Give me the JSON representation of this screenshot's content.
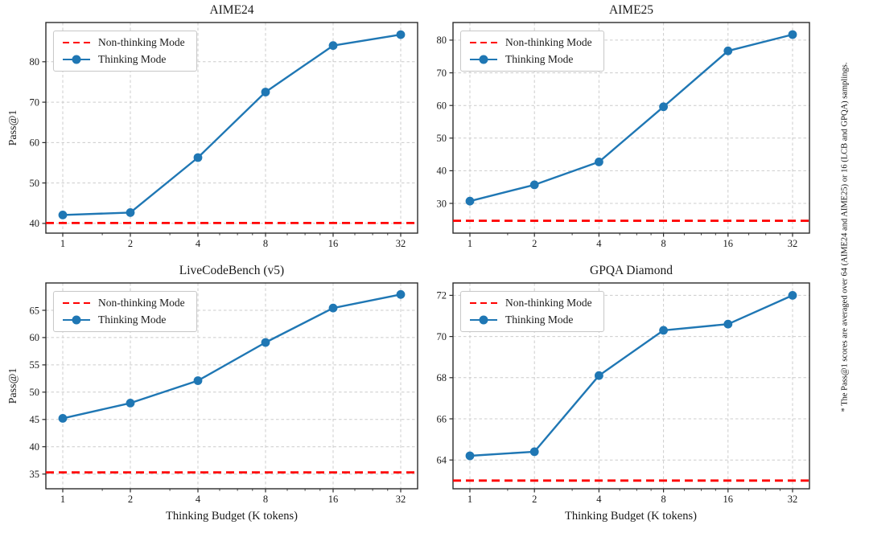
{
  "figure": {
    "ylabel": "Pass@1",
    "xlabel": "Thinking Budget (K tokens)",
    "footnote": "* The Pass@1 scores are averaged over 64 (AIME24 and AIME25) or 16 (LCB and GPQA) samplings.",
    "legend": {
      "non_thinking": "Non-thinking Mode",
      "thinking": "Thinking Mode"
    },
    "colors": {
      "thinking": "#1f77b4",
      "non_thinking": "#ff0000",
      "grid": "#cccccc",
      "spine": "#2b2b2b",
      "text": "#1a1a1a",
      "background": "#ffffff"
    }
  },
  "chart_data": [
    {
      "type": "line",
      "title": "AIME24",
      "xscale": "log2",
      "x": [
        1,
        2,
        4,
        8,
        16,
        32
      ],
      "series": [
        {
          "name": "Thinking Mode",
          "values": [
            42.1,
            42.7,
            56.3,
            72.5,
            84.0,
            86.7
          ]
        },
        {
          "name": "Non-thinking Mode",
          "constant": 40.1
        }
      ],
      "ylabel": "Pass@1",
      "yticks": [
        40,
        50,
        60,
        70,
        80
      ],
      "ylim": [
        37.6,
        89.7
      ],
      "grid": true,
      "legend_position": "upper left"
    },
    {
      "type": "line",
      "title": "AIME25",
      "xscale": "log2",
      "x": [
        1,
        2,
        4,
        8,
        16,
        32
      ],
      "series": [
        {
          "name": "Thinking Mode",
          "values": [
            30.7,
            35.7,
            42.7,
            59.6,
            76.7,
            81.7
          ]
        },
        {
          "name": "Non-thinking Mode",
          "constant": 24.7
        }
      ],
      "yticks": [
        30,
        40,
        50,
        60,
        70,
        80
      ],
      "ylim": [
        20.9,
        85.4
      ],
      "grid": true,
      "legend_position": "upper left"
    },
    {
      "type": "line",
      "title": "LiveCodeBench (v5)",
      "xscale": "log2",
      "x": [
        1,
        2,
        4,
        8,
        16,
        32
      ],
      "series": [
        {
          "name": "Thinking Mode",
          "values": [
            45.2,
            48.0,
            52.1,
            59.1,
            65.4,
            67.9
          ]
        },
        {
          "name": "Non-thinking Mode",
          "constant": 35.3
        }
      ],
      "ylabel": "Pass@1",
      "xlabel": "Thinking Budget (K tokens)",
      "yticks": [
        35,
        40,
        45,
        50,
        55,
        60,
        65
      ],
      "ylim": [
        32.3,
        70.0
      ],
      "grid": true,
      "legend_position": "upper left"
    },
    {
      "type": "line",
      "title": "GPQA Diamond",
      "xscale": "log2",
      "x": [
        1,
        2,
        4,
        8,
        16,
        32
      ],
      "series": [
        {
          "name": "Thinking Mode",
          "values": [
            64.2,
            64.4,
            68.1,
            70.3,
            70.6,
            72.0
          ]
        },
        {
          "name": "Non-thinking Mode",
          "constant": 63.0
        }
      ],
      "xlabel": "Thinking Budget (K tokens)",
      "yticks": [
        64,
        66,
        68,
        70,
        72
      ],
      "ylim": [
        62.6,
        72.6
      ],
      "grid": true,
      "legend_position": "upper left"
    }
  ]
}
